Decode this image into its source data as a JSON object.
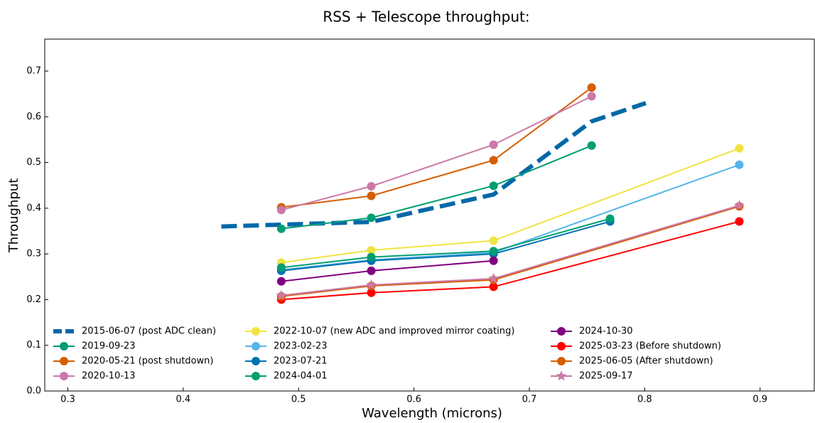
{
  "chart_data": {
    "type": "line",
    "title": "RSS + Telescope throughput:",
    "x_label": "Wavelength (microns)",
    "y_label": "Throughput",
    "xlim": [
      0.28,
      0.947
    ],
    "ylim": [
      0,
      0.77
    ],
    "xticks": [
      0.3,
      0.4,
      0.5,
      0.6,
      0.7,
      0.8,
      0.9
    ],
    "yticks": [
      {
        "value": 0,
        "label": "0.0"
      },
      0.1,
      0.2,
      0.3,
      0.4,
      0.5,
      0.6,
      0.7
    ],
    "legend": "lower left",
    "series": [
      {
        "name": "2015-06-07 (post ADC clean)",
        "color": "#0068a8",
        "linestyle": "dashed",
        "marker": "none",
        "x": [
          0.433,
          0.485,
          0.563,
          0.669,
          0.754,
          0.801
        ],
        "values": [
          0.36,
          0.364,
          0.37,
          0.43,
          0.59,
          0.63
        ]
      },
      {
        "name": "2019-09-23",
        "color": "#009e73",
        "linestyle": "solid",
        "marker": "circle",
        "x": [
          0.485,
          0.563,
          0.669,
          0.754
        ],
        "values": [
          0.355,
          0.379,
          0.449,
          0.537
        ]
      },
      {
        "name": "2020-05-21 (post shutdown)",
        "color": "#d55e00",
        "linestyle": "solid",
        "marker": "circle",
        "x": [
          0.485,
          0.563,
          0.669,
          0.754
        ],
        "values": [
          0.402,
          0.427,
          0.505,
          0.664
        ]
      },
      {
        "name": "2020-10-13",
        "color": "#cc79a7",
        "linestyle": "solid",
        "marker": "circle",
        "x": [
          0.485,
          0.563,
          0.669,
          0.754
        ],
        "values": [
          0.396,
          0.448,
          0.539,
          0.645
        ]
      },
      {
        "name": "2022-10-07 (new ADC and improved mirror coating)",
        "color": "#f0e442",
        "linestyle": "solid",
        "marker": "circle",
        "x": [
          0.485,
          0.563,
          0.669,
          0.882
        ],
        "values": [
          0.281,
          0.308,
          0.329,
          0.531
        ]
      },
      {
        "name": "2023-02-23",
        "color": "#56b4e9",
        "linestyle": "solid",
        "marker": "circle",
        "x": [
          0.485,
          0.563,
          0.669,
          0.882
        ],
        "values": [
          0.265,
          0.287,
          0.303,
          0.495
        ]
      },
      {
        "name": "2023-07-21",
        "color": "#0072b2",
        "linestyle": "solid",
        "marker": "circle",
        "x": [
          0.485,
          0.563,
          0.669,
          0.77
        ],
        "values": [
          0.263,
          0.285,
          0.3,
          0.371
        ]
      },
      {
        "name": "2024-04-01",
        "color": "#009e73",
        "linestyle": "solid",
        "marker": "circle",
        "x": [
          0.485,
          0.563,
          0.669,
          0.77
        ],
        "values": [
          0.27,
          0.293,
          0.306,
          0.377
        ]
      },
      {
        "name": "2024-10-30",
        "color": "#800080",
        "linestyle": "solid",
        "marker": "circle",
        "x": [
          0.485,
          0.563,
          0.669
        ],
        "values": [
          0.24,
          0.263,
          0.285
        ]
      },
      {
        "name": "2025-03-23 (Before shutdown)",
        "color": "#ff0000",
        "linestyle": "solid",
        "marker": "circle",
        "x": [
          0.485,
          0.563,
          0.669,
          0.882
        ],
        "values": [
          0.2,
          0.215,
          0.228,
          0.371
        ]
      },
      {
        "name": "2025-06-05 (After shutdown)",
        "color": "#d55e00",
        "linestyle": "solid",
        "marker": "circle",
        "x": [
          0.485,
          0.563,
          0.669,
          0.882
        ],
        "values": [
          0.207,
          0.23,
          0.243,
          0.404
        ]
      },
      {
        "name": "2025-09-17",
        "color": "#cc79a7",
        "linestyle": "solid",
        "marker": "star",
        "x": [
          0.485,
          0.563,
          0.669,
          0.882
        ],
        "values": [
          0.209,
          0.232,
          0.246,
          0.406
        ]
      }
    ]
  }
}
